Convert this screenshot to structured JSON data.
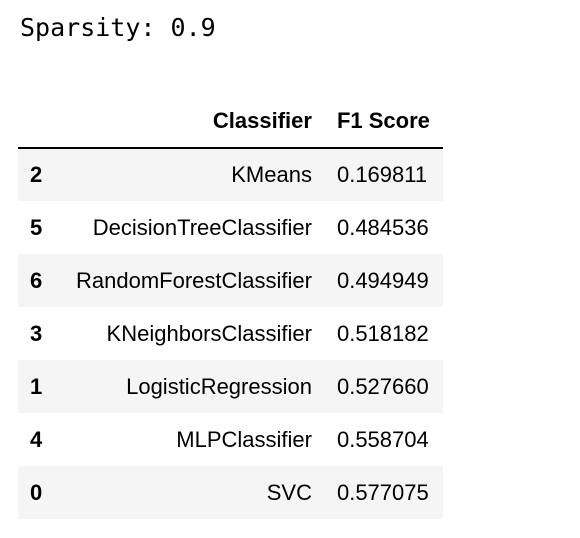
{
  "output": {
    "text": "Sparsity: 0.9"
  },
  "table": {
    "headers": {
      "index": "",
      "classifier": "Classifier",
      "f1_score": "F1 Score"
    },
    "rows": [
      {
        "index": "2",
        "classifier": "KMeans",
        "f1_score": "0.169811"
      },
      {
        "index": "5",
        "classifier": "DecisionTreeClassifier",
        "f1_score": "0.484536"
      },
      {
        "index": "6",
        "classifier": "RandomForestClassifier",
        "f1_score": "0.494949"
      },
      {
        "index": "3",
        "classifier": "KNeighborsClassifier",
        "f1_score": "0.518182"
      },
      {
        "index": "1",
        "classifier": "LogisticRegression",
        "f1_score": "0.527660"
      },
      {
        "index": "4",
        "classifier": "MLPClassifier",
        "f1_score": "0.558704"
      },
      {
        "index": "0",
        "classifier": "SVC",
        "f1_score": "0.577075"
      }
    ]
  }
}
